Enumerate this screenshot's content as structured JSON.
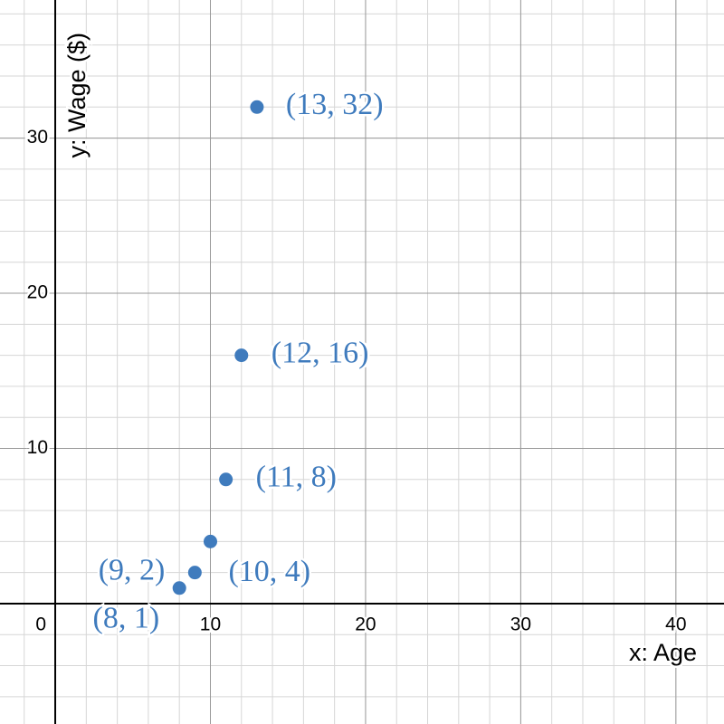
{
  "chart_data": {
    "type": "scatter",
    "x_label": "x: Age",
    "y_label": "y: Wage ($)",
    "x": [
      8,
      9,
      10,
      11,
      12,
      13
    ],
    "values": [
      1,
      2,
      4,
      8,
      16,
      32
    ],
    "value_labels": [
      "(8, 1)",
      "(9, 2)",
      "(10, 4)",
      "(11, 8)",
      "(12, 16)",
      "(13, 32)"
    ],
    "color": "#3f7bbd",
    "xlim": [
      -3.56,
      43.1
    ],
    "ylim": [
      -7.76,
      38.9
    ],
    "xticks": [
      0,
      10,
      20,
      30,
      40
    ],
    "yticks": [
      10,
      20,
      30
    ],
    "grid": true,
    "minor_grid_step": 2
  }
}
